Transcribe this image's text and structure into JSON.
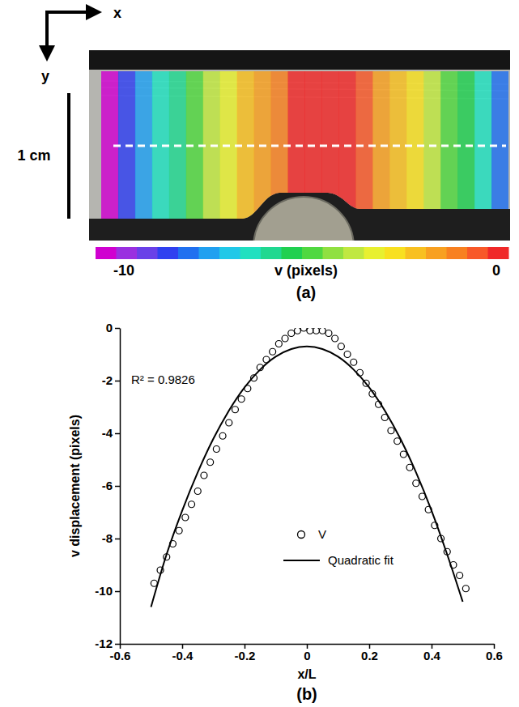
{
  "chart_data": [
    {
      "type": "heatmap",
      "title": "(a)",
      "x_label": "x",
      "y_label": "y",
      "annotations": [
        "1 cm"
      ],
      "cells": [
        -9.6,
        -8.5,
        -7.5,
        -6.5,
        -5.6,
        -4.7,
        -3.9,
        -3.1,
        -2.4,
        -1.7,
        -1.1,
        -0.5,
        -0.2,
        -0.2,
        -0.5,
        -1.0,
        -1.6,
        -2.3,
        -3.0,
        -3.8,
        -4.6,
        -5.5,
        -6.5,
        -7.6
      ],
      "colorbar": {
        "range": [
          -10,
          0
        ],
        "ticks": [
          -10,
          0
        ],
        "label": "v (pixels)"
      }
    },
    {
      "type": "scatter",
      "title": "(b)",
      "x_label": "x/L",
      "y_label": "v displacement (pixels)",
      "annotations": [
        "R² = 0.9826"
      ],
      "xlim": [
        -0.6,
        0.6
      ],
      "xticks": [
        -0.6,
        -0.4,
        -0.2,
        0,
        0.2,
        0.4,
        0.6
      ],
      "ylim": [
        -12,
        0
      ],
      "yticks": [
        -12,
        -10,
        -8,
        -6,
        -4,
        -2,
        0
      ],
      "grid": false,
      "legend": "bottom",
      "series": [
        {
          "name": "V",
          "type": "scatter",
          "marker": "circle",
          "color": "#000000",
          "x": [
            -0.49,
            -0.47,
            -0.45,
            -0.43,
            -0.41,
            -0.39,
            -0.37,
            -0.35,
            -0.33,
            -0.31,
            -0.29,
            -0.27,
            -0.25,
            -0.23,
            -0.21,
            -0.19,
            -0.17,
            -0.15,
            -0.13,
            -0.11,
            -0.09,
            -0.07,
            -0.05,
            -0.03,
            -0.01,
            0.01,
            0.03,
            0.05,
            0.07,
            0.09,
            0.11,
            0.13,
            0.15,
            0.17,
            0.19,
            0.21,
            0.23,
            0.25,
            0.27,
            0.29,
            0.31,
            0.33,
            0.35,
            0.37,
            0.39,
            0.41,
            0.43,
            0.45,
            0.47,
            0.49,
            0.51
          ],
          "values": [
            -9.7,
            -9.2,
            -8.7,
            -8.2,
            -7.7,
            -7.2,
            -6.7,
            -6.2,
            -5.6,
            -5.1,
            -4.6,
            -4.1,
            -3.6,
            -3.1,
            -2.7,
            -2.3,
            -1.9,
            -1.5,
            -1.2,
            -0.9,
            -0.6,
            -0.4,
            -0.2,
            -0.1,
            0.0,
            -0.1,
            -0.1,
            -0.1,
            -0.2,
            -0.4,
            -0.7,
            -1.0,
            -1.3,
            -1.7,
            -2.1,
            -2.5,
            -2.9,
            -3.4,
            -3.9,
            -4.3,
            -4.8,
            -5.3,
            -5.9,
            -6.4,
            -6.9,
            -7.5,
            -8.0,
            -8.5,
            -9.0,
            -9.4,
            -9.9
          ]
        },
        {
          "name": "Quadratic fit",
          "type": "line",
          "line_style": "solid",
          "color": "#000000",
          "x": [
            -0.5,
            -0.45,
            -0.4,
            -0.35,
            -0.3,
            -0.25,
            -0.2,
            -0.15,
            -0.1,
            -0.05,
            0,
            0.05,
            0.1,
            0.15,
            0.2,
            0.25,
            0.3,
            0.35,
            0.4,
            0.45,
            0.5
          ],
          "values": [
            -10.6,
            -8.6,
            -6.94,
            -5.48,
            -4.21,
            -3.14,
            -2.26,
            -1.58,
            -1.09,
            -0.8,
            -0.7,
            -0.8,
            -1.09,
            -1.58,
            -2.26,
            -3.14,
            -4.21,
            -5.48,
            -6.94,
            -8.6,
            -10.4
          ]
        }
      ]
    }
  ]
}
